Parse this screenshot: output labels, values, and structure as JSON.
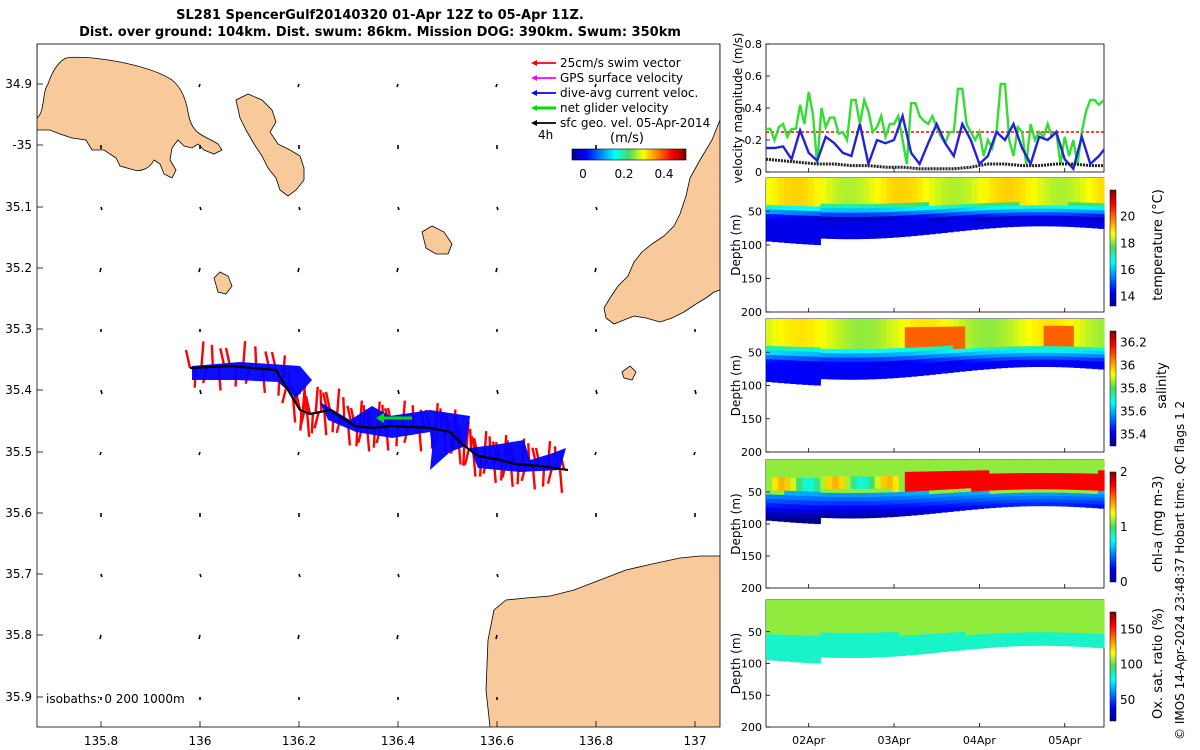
{
  "title_line1": "SL281 SpencerGulf20140320 01-Apr 12Z to 05-Apr 11Z.",
  "title_line2": "Dist. over ground: 104km. Dist. swum: 86km. Mission DOG: 390km. Swum: 350km",
  "map": {
    "lon_ticks": [
      "135.8",
      "136",
      "136.2",
      "136.4",
      "136.6",
      "136.8",
      "137"
    ],
    "lat_ticks": [
      "34.9",
      "-35",
      "35.1",
      "35.2",
      "35.3",
      "35.4",
      "35.5",
      "35.6",
      "35.7",
      "35.8",
      "35.9"
    ],
    "legend": [
      {
        "label": "25cm/s swim vector",
        "color": "#ff0000"
      },
      {
        "label": "GPS surface velocity",
        "color": "#ff00ff"
      },
      {
        "label": "dive-avg current veloc.",
        "color": "#0000ff"
      },
      {
        "label": "net glider velocity",
        "color": "#00dd00"
      },
      {
        "label": "sfc geo. vel. 05-Apr-2014",
        "color": "#000000"
      }
    ],
    "colorbar_label": "(m/s)",
    "colorbar_time": "4h",
    "colorbar_ticks": [
      "0",
      "0.2",
      "0.4"
    ],
    "isobaths_text": "isobaths: 0   200  1000m",
    "land_color": "#f8c99b",
    "colors": {
      "swim": "#ff0000",
      "current": "#0000ff",
      "net": "#00dd00",
      "track": "#000000"
    }
  },
  "chart_data": [
    {
      "type": "line",
      "ylabel": "velocity magnitude (m/s)",
      "ylim": [
        0,
        0.8
      ],
      "yticks": [
        "0",
        "0.2",
        "0.4",
        "0.6",
        "0.8"
      ],
      "x_ticks": [
        "02Apr",
        "03Apr",
        "04Apr",
        "05Apr"
      ],
      "x_tick_days": [
        2,
        3,
        4,
        5
      ],
      "xlim_days": [
        1.5,
        5.46
      ],
      "series": [
        {
          "color": "#ff0000",
          "dashed": true,
          "x": [
            1.5,
            5.46
          ],
          "y": [
            0.25,
            0.25
          ]
        },
        {
          "color": "#33dd33",
          "x": [
            1.5,
            1.55,
            1.6,
            1.65,
            1.7,
            1.75,
            1.8,
            1.85,
            1.9,
            1.95,
            2.0,
            2.05,
            2.1,
            2.15,
            2.2,
            2.25,
            2.3,
            2.35,
            2.4,
            2.45,
            2.5,
            2.55,
            2.6,
            2.65,
            2.7,
            2.75,
            2.8,
            2.85,
            2.9,
            2.95,
            3.0,
            3.05,
            3.1,
            3.15,
            3.2,
            3.25,
            3.3,
            3.35,
            3.4,
            3.45,
            3.5,
            3.55,
            3.6,
            3.65,
            3.7,
            3.75,
            3.8,
            3.85,
            3.9,
            3.95,
            4.0,
            4.05,
            4.1,
            4.15,
            4.2,
            4.25,
            4.3,
            4.35,
            4.4,
            4.45,
            4.5,
            4.55,
            4.6,
            4.65,
            4.7,
            4.75,
            4.8,
            4.85,
            4.9,
            4.95,
            5.0,
            5.05,
            5.1,
            5.15,
            5.2,
            5.25,
            5.3,
            5.35,
            5.4,
            5.46
          ],
          "y": [
            0.27,
            0.27,
            0.2,
            0.28,
            0.3,
            0.22,
            0.27,
            0.27,
            0.42,
            0.3,
            0.5,
            0.36,
            0.05,
            0.4,
            0.28,
            0.34,
            0.34,
            0.24,
            0.25,
            0.2,
            0.45,
            0.45,
            0.3,
            0.45,
            0.38,
            0.25,
            0.28,
            0.35,
            0.22,
            0.3,
            0.3,
            0.35,
            0.2,
            0.05,
            0.43,
            0.43,
            0.35,
            0.32,
            0.3,
            0.35,
            0.28,
            0.22,
            0.18,
            0.25,
            0.25,
            0.52,
            0.52,
            0.3,
            0.25,
            0.2,
            0.25,
            0.1,
            0.2,
            0.15,
            0.25,
            0.55,
            0.55,
            0.2,
            0.1,
            0.28,
            0.25,
            0.05,
            0.3,
            0.2,
            0.25,
            0.22,
            0.3,
            0.22,
            0.25,
            0.05,
            0.22,
            0.1,
            0.2,
            0.05,
            0.25,
            0.38,
            0.45,
            0.45,
            0.42,
            0.45
          ]
        },
        {
          "color": "#2222dd",
          "x": [
            1.5,
            1.6,
            1.7,
            1.8,
            1.9,
            2.0,
            2.1,
            2.2,
            2.3,
            2.4,
            2.5,
            2.6,
            2.7,
            2.8,
            2.9,
            3.0,
            3.1,
            3.2,
            3.3,
            3.4,
            3.5,
            3.6,
            3.7,
            3.8,
            3.9,
            4.0,
            4.1,
            4.2,
            4.3,
            4.4,
            4.5,
            4.6,
            4.7,
            4.8,
            4.9,
            5.0,
            5.1,
            5.2,
            5.3,
            5.4,
            5.46
          ],
          "y": [
            0.15,
            0.15,
            0.16,
            0.08,
            0.26,
            0.12,
            0.07,
            0.22,
            0.18,
            0.12,
            0.1,
            0.3,
            0.05,
            0.2,
            0.18,
            0.2,
            0.35,
            0.12,
            0.05,
            0.18,
            0.3,
            0.18,
            0.1,
            0.3,
            0.2,
            0.05,
            0.1,
            0.25,
            0.2,
            0.3,
            0.15,
            0.05,
            0.22,
            0.2,
            0.25,
            0.08,
            0.02,
            0.22,
            0.05,
            0.1,
            0.14
          ]
        },
        {
          "color": "#222222",
          "dotted": true,
          "x": [
            1.5,
            1.7,
            1.9,
            2.1,
            2.3,
            2.5,
            2.7,
            2.9,
            3.1,
            3.3,
            3.5,
            3.7,
            3.9,
            4.1,
            4.3,
            4.5,
            4.7,
            4.9,
            5.1,
            5.3,
            5.46
          ],
          "y": [
            0.08,
            0.07,
            0.06,
            0.05,
            0.05,
            0.04,
            0.04,
            0.03,
            0.03,
            0.02,
            0.02,
            0.02,
            0.03,
            0.05,
            0.05,
            0.04,
            0.04,
            0.05,
            0.05,
            0.04,
            0.04
          ]
        }
      ]
    },
    {
      "type": "heatmap",
      "ylabel": "Depth (m)",
      "ylim": [
        200,
        0
      ],
      "yticks": [
        "50",
        "100",
        "150",
        "200"
      ],
      "colorbar_label": "temperature (°C)",
      "colorbar_ticks": [
        "14",
        "16",
        "18",
        "20"
      ],
      "clim": [
        13.3,
        22
      ]
    },
    {
      "type": "heatmap",
      "ylabel": "Depth (m)",
      "ylim": [
        200,
        0
      ],
      "yticks": [
        "50",
        "100",
        "150",
        "200"
      ],
      "colorbar_label": "salinity",
      "colorbar_ticks": [
        "35.4",
        "35.6",
        "35.8",
        "36",
        "36.2"
      ],
      "clim": [
        35.3,
        36.3
      ]
    },
    {
      "type": "heatmap",
      "ylabel": "Depth (m)",
      "ylim": [
        200,
        0
      ],
      "yticks": [
        "50",
        "100",
        "150",
        "200"
      ],
      "colorbar_label": "chl-a (mg m-3)",
      "colorbar_ticks": [
        "0",
        "1",
        "2"
      ],
      "clim": [
        0,
        2
      ]
    },
    {
      "type": "heatmap",
      "ylabel": "Depth (m)",
      "ylim": [
        200,
        0
      ],
      "yticks": [
        "50",
        "100",
        "150",
        "200"
      ],
      "colorbar_label": "Ox. sat. ratio (%)",
      "colorbar_ticks": [
        "50",
        "100",
        "150"
      ],
      "clim": [
        20,
        175
      ],
      "x_ticks": [
        "02Apr",
        "03Apr",
        "04Apr",
        "05Apr"
      ]
    }
  ],
  "footer_text": "© IMOS 14-Apr-2024 23:48:37 Hobart time. QC flags 1  2"
}
